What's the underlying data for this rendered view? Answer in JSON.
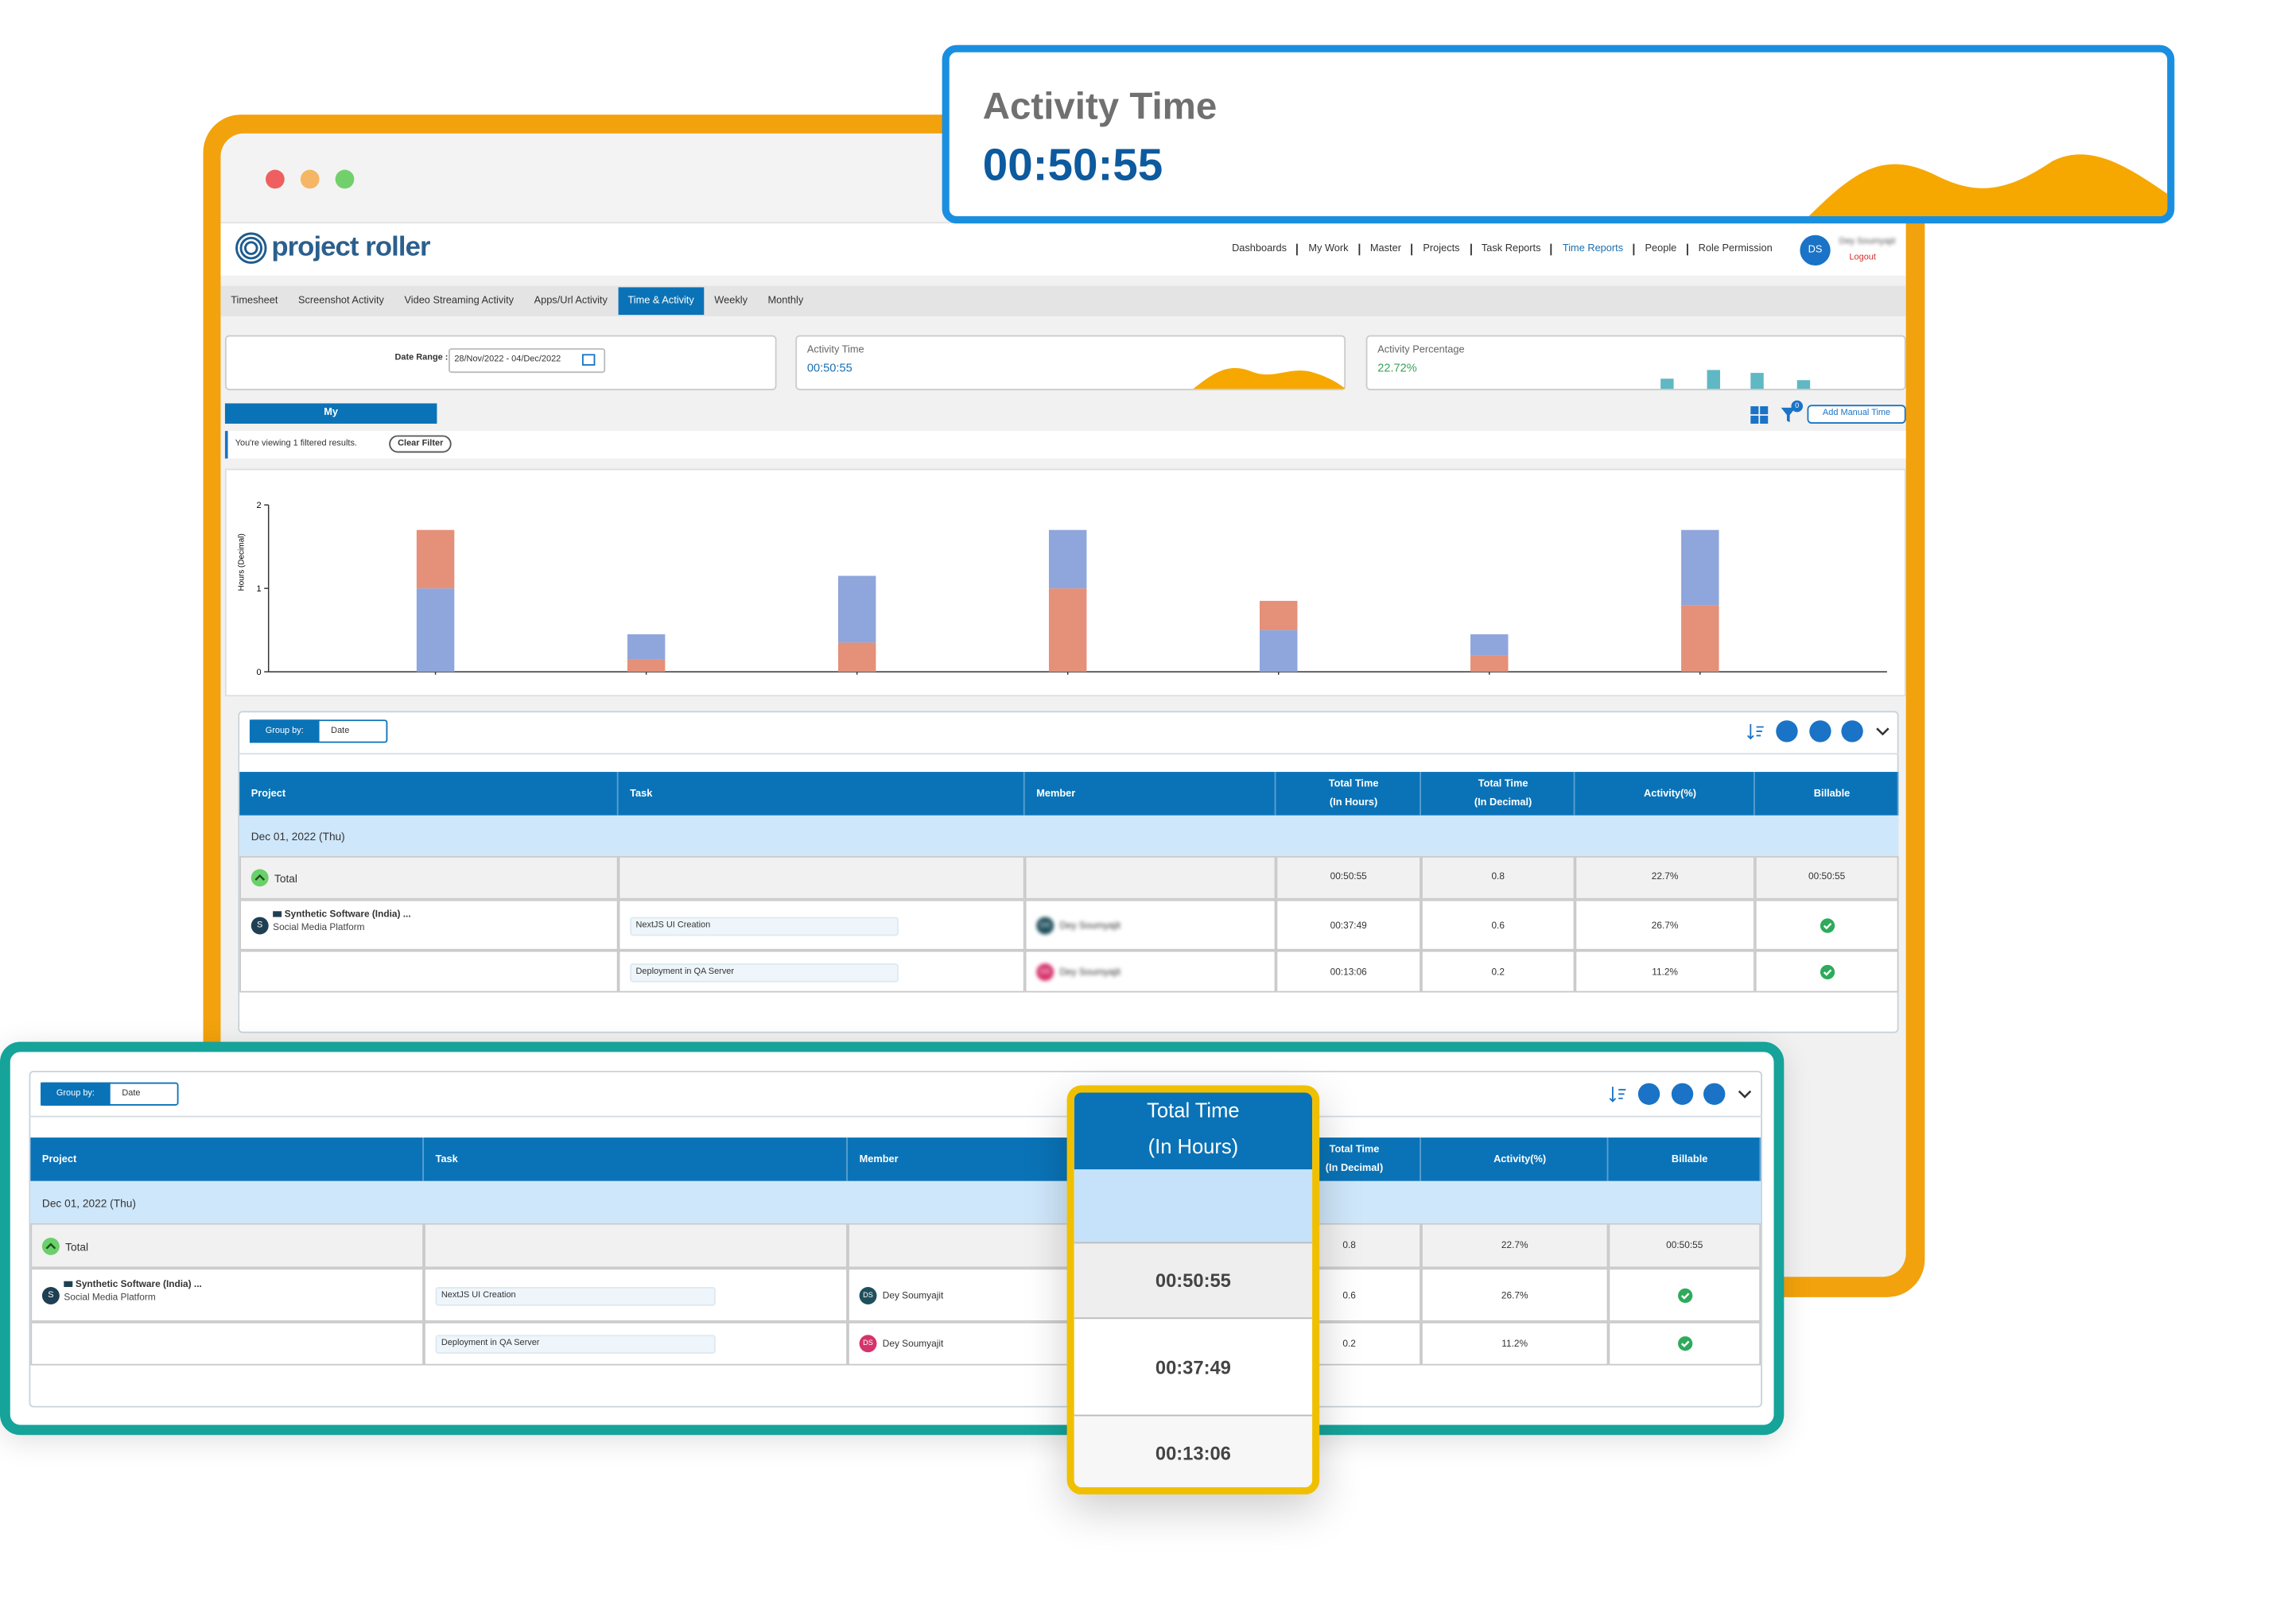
{
  "callout": {
    "title": "Activity Time",
    "value": "00:50:55"
  },
  "app": {
    "logo": "project roller",
    "nav": [
      "Dashboards",
      "My Work",
      "Master",
      "Projects",
      "Task Reports",
      "Time Reports",
      "People",
      "Role Permission"
    ],
    "user": {
      "initials": "DS",
      "name": "Dey Soumyajit",
      "logout": "Logout"
    },
    "tabs": [
      "Timesheet",
      "Screenshot Activity",
      "Video Streaming Activity",
      "Apps/Url Activity",
      "Time & Activity",
      "Weekly",
      "Monthly"
    ],
    "date_range": {
      "label": "Date Range :",
      "value": "28/Nov/2022 - 04/Dec/2022"
    },
    "activity_time": {
      "label": "Activity Time",
      "value": "00:50:55"
    },
    "activity_percentage": {
      "label": "Activity Percentage",
      "value": "22.72%"
    },
    "view_tab": "My",
    "filter_count": "0",
    "add_manual_time": "Add Manual Time",
    "filter_message": "You're viewing 1 filtered results.",
    "clear_filter": "Clear Filter",
    "chart": {
      "type": "bar",
      "stacked": true,
      "y_label": "Hours (Decimal)",
      "ylim": [
        0,
        2
      ],
      "yticks": [
        0,
        1,
        2
      ],
      "bars": [
        {
          "segments": [
            {
              "color": "#8fa6dc",
              "value": 1.0
            },
            {
              "color": "#e59079",
              "value": 0.7
            }
          ]
        },
        {
          "segments": [
            {
              "color": "#e59079",
              "value": 0.15
            },
            {
              "color": "#8fa6dc",
              "value": 0.3
            }
          ]
        },
        {
          "segments": [
            {
              "color": "#e59079",
              "value": 0.35
            },
            {
              "color": "#8fa6dc",
              "value": 0.8
            }
          ]
        },
        {
          "segments": [
            {
              "color": "#e59079",
              "value": 1.0
            },
            {
              "color": "#8fa6dc",
              "value": 0.7
            }
          ]
        },
        {
          "segments": [
            {
              "color": "#8fa6dc",
              "value": 0.5
            },
            {
              "color": "#e59079",
              "value": 0.35
            }
          ]
        },
        {
          "segments": [
            {
              "color": "#e59079",
              "value": 0.2
            },
            {
              "color": "#8fa6dc",
              "value": 0.25
            }
          ]
        },
        {
          "segments": [
            {
              "color": "#e59079",
              "value": 0.8
            },
            {
              "color": "#8fa6dc",
              "value": 0.9
            }
          ]
        }
      ]
    },
    "table": {
      "group_by_label": "Group by:",
      "group_by_value": "Date",
      "columns": [
        [
          "Project"
        ],
        [
          "Task"
        ],
        [
          "Member"
        ],
        [
          "Total Time",
          "(In Hours)"
        ],
        [
          "Total Time",
          "(In Decimal)"
        ],
        [
          "Activity(%)"
        ],
        [
          "Billable"
        ]
      ],
      "group": "Dec 01, 2022 (Thu)",
      "total": {
        "label": "Total",
        "cells": [
          "00:50:55",
          "0.8",
          "22.7%",
          "00:50:55"
        ]
      },
      "rows": [
        {
          "avatar": "S",
          "project": "Synthetic Software (India) ...",
          "subproject": "Social Media Platform",
          "task": "NextJS UI Creation",
          "member_initials": "DS",
          "member": "Dey Soumyajit",
          "cells": [
            "00:37:49",
            "0.6",
            "26.7%"
          ]
        },
        {
          "task": "Deployment in QA Server",
          "member_initials": "DS",
          "member": "Dey Soumyajit",
          "cells": [
            "00:13:06",
            "0.2",
            "11.2%"
          ]
        }
      ]
    }
  },
  "zoom_table": {
    "group_by_label": "Group by:",
    "group_by_value": "Date",
    "columns": [
      [
        "Project"
      ],
      [
        "Task"
      ],
      [
        "Member"
      ],
      [
        "Total Time",
        "(In Hours)"
      ],
      [
        "Total Time",
        "(In Decimal)"
      ],
      [
        "Activity(%)"
      ],
      [
        "Billable"
      ]
    ],
    "group": "Dec 01, 2022 (Thu)",
    "total": {
      "label": "Total",
      "cells": [
        "00:50:55",
        "0.8",
        "22.7%",
        "00:50:55"
      ]
    },
    "rows": [
      {
        "avatar": "S",
        "project": "Synthetic Software (India) ...",
        "subproject": "Social Media Platform",
        "task": "NextJS UI Creation",
        "member_initials": "DS",
        "member": "Dey Soumyajit",
        "cells": [
          "00:37:49",
          "0.6",
          "26.7%"
        ]
      },
      {
        "task": "Deployment in QA Server",
        "member_initials": "DS",
        "member": "Dey Soumyajit",
        "cells": [
          "00:13:06",
          "0.2",
          "11.2%"
        ]
      }
    ]
  },
  "zoom_column": {
    "header": [
      "Total Time",
      "(In Hours)"
    ],
    "values": [
      "00:50:55",
      "00:37:49",
      "00:13:06"
    ]
  }
}
